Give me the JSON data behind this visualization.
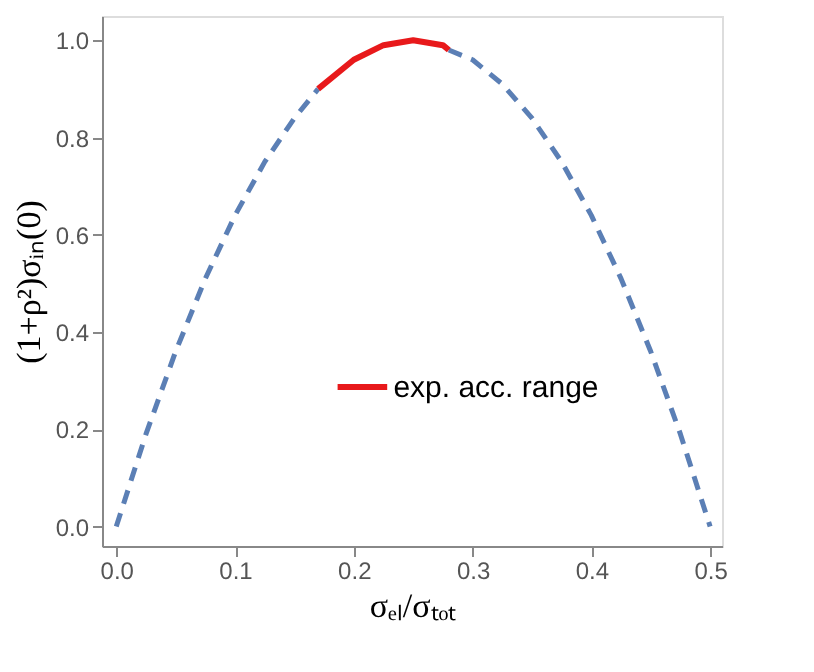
{
  "chart_data": {
    "type": "line",
    "xlabel": "σₑₗ/σₜₒₜ",
    "ylabel": "(1+ρ²)σᵢₙ(0)",
    "series": [
      {
        "color": "#5b7fb5",
        "line_style": "dashed",
        "x": [
          0,
          0.025,
          0.05,
          0.075,
          0.1,
          0.125,
          0.15,
          0.17,
          0.2,
          0.25,
          0.28,
          0.3,
          0.325,
          0.35,
          0.375,
          0.4,
          0.425,
          0.45,
          0.475,
          0.5
        ],
        "values": [
          0,
          0.19,
          0.36,
          0.51,
          0.64,
          0.75,
          0.84,
          0.9,
          null,
          null,
          0.98,
          0.96,
          0.91,
          0.84,
          0.75,
          0.64,
          0.51,
          0.36,
          0.19,
          0
        ]
      },
      {
        "name": "exp. acc. range",
        "color": "#e8191b",
        "line_style": "solid",
        "x": [
          0.17,
          0.2,
          0.225,
          0.25,
          0.275,
          0.28
        ],
        "values": [
          0.9,
          0.96,
          0.99,
          1.0,
          0.99,
          0.98
        ]
      }
    ],
    "xlim": [
      -0.012,
      0.51
    ],
    "ylim": [
      -0.04,
      1.05
    ],
    "xticks": [
      {
        "value": 0,
        "label": "0.0"
      },
      0.1,
      0.2,
      0.3,
      0.4,
      0.5
    ],
    "yticks": [
      {
        "value": 0,
        "label": "0.0"
      },
      0.2,
      0.4,
      0.6,
      0.8,
      {
        "value": 1,
        "label": "1.0"
      }
    ],
    "grid": false,
    "legend": "bottom",
    "marker": "none"
  }
}
